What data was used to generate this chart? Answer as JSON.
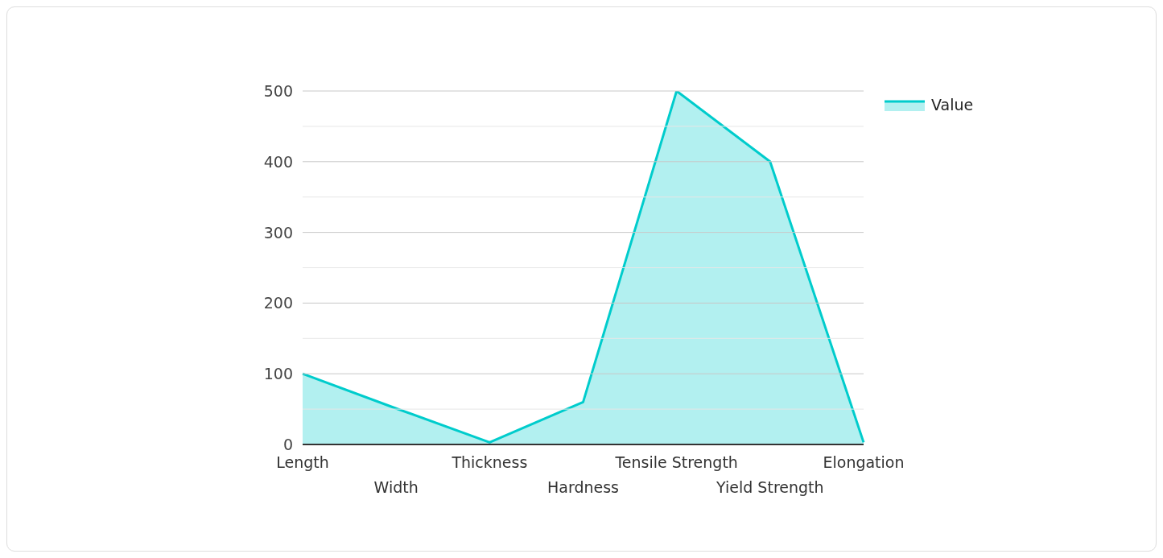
{
  "chart_data": {
    "type": "area",
    "categories": [
      "Length",
      "Width",
      "Thickness",
      "Hardness",
      "Tensile Strength",
      "Yield Strength",
      "Elongation"
    ],
    "series": [
      {
        "name": "Value",
        "color": "#00cccc",
        "values": [
          100,
          51,
          3,
          60,
          500,
          400,
          3
        ]
      }
    ],
    "ylim": [
      0,
      500
    ],
    "yticks": [
      0,
      {
        "value": 50,
        "label": null
      },
      100,
      {
        "value": 150,
        "label": null
      },
      200,
      {
        "value": 250,
        "label": null
      },
      300,
      {
        "value": 350,
        "label": null
      },
      400,
      {
        "value": 450,
        "label": null
      },
      500
    ],
    "grid": "y",
    "legend": "top right"
  }
}
